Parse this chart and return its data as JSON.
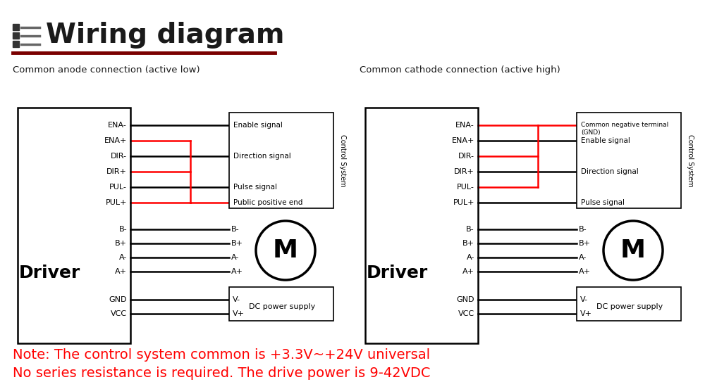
{
  "title": "Wiring diagram",
  "title_color": "#1a1a1a",
  "title_line_color": "#7a0000",
  "bg_color": "#ffffff",
  "left_subtitle": "Common anode connection (active low)",
  "right_subtitle": "Common cathode connection (active high)",
  "left_pins": [
    "ENA-",
    "ENA+",
    "DIR-",
    "DIR+",
    "PUL-",
    "PUL+"
  ],
  "right_pins_cathode": [
    "ENA-",
    "ENA+",
    "DIR-",
    "DIR+",
    "PUL-",
    "PUL+"
  ],
  "motor_pins": [
    "B-",
    "B+",
    "A-",
    "A+"
  ],
  "power_pins": [
    "GND",
    "VCC"
  ],
  "note_line1": "Note: The control system common is +3.3V~+24V universal",
  "note_line2": "No series resistance is required. The drive power is 9-42VDC",
  "note_color": "#ff0000",
  "left_ctrl_labels": [
    "Enable signal",
    "Direction signal",
    "Pulse signal",
    "Public positive end"
  ],
  "right_ctrl_labels_line1": "Common negative terminal",
  "right_ctrl_labels_line2": "(GND)",
  "right_ctrl_labels": [
    "Enable signal",
    "Direction signal",
    "Pulse signal"
  ],
  "ctrl_system_label": "Control System"
}
